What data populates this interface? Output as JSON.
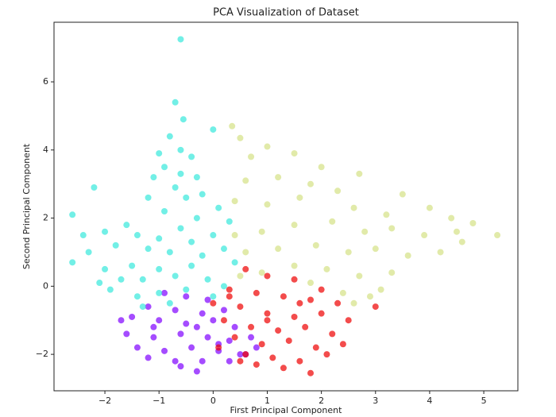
{
  "chart_data": {
    "type": "scatter",
    "title": "PCA Visualization of Dataset",
    "x_label": "First Principal Component",
    "y_label": "Second Principal Component",
    "xlim": [
      -2.94,
      5.63
    ],
    "ylim": [
      -3.07,
      7.75
    ],
    "xticks": [
      {
        "value": -2,
        "label": "−2"
      },
      {
        "value": -1,
        "label": "−1"
      },
      0,
      1,
      2,
      3,
      4,
      5
    ],
    "yticks": [
      {
        "value": -2,
        "label": "−2"
      },
      0,
      2,
      4,
      6
    ],
    "series": [
      {
        "color": "#7f00ff",
        "x": [
          -0.9,
          -0.5,
          -0.1,
          -1.2,
          -0.7,
          -0.2,
          0.2,
          -1.5,
          -1.0,
          -0.5,
          0.0,
          0.4,
          -1.7,
          -1.6,
          -1.1,
          -0.6,
          -0.1,
          0.3,
          0.7,
          -1.4,
          -0.9,
          -0.4,
          0.1,
          0.5,
          -1.2,
          -0.7,
          -0.2,
          0.3,
          -1.1,
          -0.3,
          -0.6,
          -0.3,
          0.6,
          0.8,
          0.1
        ],
        "y": [
          -0.2,
          -0.3,
          -0.4,
          -0.6,
          -0.7,
          -0.8,
          -0.7,
          -0.9,
          -1.0,
          -1.1,
          -1.0,
          -1.2,
          -1.0,
          -1.4,
          -1.5,
          -1.4,
          -1.5,
          -1.6,
          -1.5,
          -1.8,
          -1.9,
          -1.8,
          -1.9,
          -2.0,
          -2.1,
          -2.2,
          -2.2,
          -2.2,
          -1.2,
          -1.2,
          -2.35,
          -2.5,
          -2.0,
          -1.8,
          -1.7
        ]
      },
      {
        "color": "#ee0000",
        "x": [
          0.6,
          1.0,
          1.5,
          2.0,
          0.3,
          0.8,
          1.3,
          1.8,
          2.3,
          3.0,
          0.0,
          0.5,
          1.0,
          1.5,
          2.0,
          2.5,
          0.2,
          0.7,
          1.2,
          1.7,
          2.2,
          2.4,
          1.9,
          1.4,
          0.9,
          0.4,
          0.1,
          0.6,
          1.1,
          1.6,
          2.1,
          0.8,
          1.3,
          1.8,
          0.5,
          1.0,
          1.6,
          0.3
        ],
        "y": [
          0.5,
          0.3,
          0.2,
          -0.1,
          -0.1,
          -0.2,
          -0.3,
          -0.4,
          -0.5,
          -0.6,
          -0.5,
          -0.6,
          -0.8,
          -0.9,
          -0.8,
          -1.0,
          -1.0,
          -1.2,
          -1.3,
          -1.2,
          -1.4,
          -1.7,
          -1.8,
          -1.6,
          -1.7,
          -1.5,
          -1.8,
          -2.0,
          -2.1,
          -2.2,
          -2.0,
          -2.3,
          -2.4,
          -2.55,
          -2.2,
          -1.0,
          -0.5,
          -0.3
        ]
      },
      {
        "color": "#d4e185",
        "x": [
          0.35,
          0.5,
          1.0,
          0.7,
          1.5,
          2.0,
          2.7,
          1.2,
          0.6,
          1.8,
          2.3,
          3.5,
          0.4,
          1.0,
          1.6,
          2.6,
          3.2,
          4.0,
          4.4,
          4.8,
          5.25,
          4.5,
          3.9,
          3.3,
          2.8,
          2.2,
          1.5,
          0.9,
          0.4,
          0.6,
          1.2,
          1.9,
          2.5,
          3.0,
          3.6,
          4.2,
          3.3,
          2.7,
          2.1,
          1.5,
          0.9,
          0.5,
          2.4,
          2.9,
          2.6,
          3.1,
          1.8,
          4.6
        ],
        "y": [
          4.7,
          4.35,
          4.1,
          3.8,
          3.9,
          3.5,
          3.3,
          3.2,
          3.1,
          3.0,
          2.8,
          2.7,
          2.5,
          2.4,
          2.6,
          2.3,
          2.1,
          2.3,
          2.0,
          1.85,
          1.5,
          1.6,
          1.5,
          1.7,
          1.6,
          1.9,
          1.8,
          1.6,
          1.5,
          1.0,
          1.1,
          1.2,
          1.0,
          1.1,
          0.9,
          1.0,
          0.4,
          0.3,
          0.5,
          0.6,
          0.4,
          0.3,
          -0.2,
          -0.3,
          -0.5,
          -0.1,
          0.1,
          1.3
        ]
      },
      {
        "color": "#36e8dc",
        "x": [
          -0.6,
          -0.7,
          -0.55,
          -0.8,
          -0.6,
          -1.0,
          -0.4,
          -0.9,
          -0.6,
          -0.3,
          -1.1,
          -0.7,
          -0.2,
          -0.5,
          -1.2,
          -2.2,
          -2.6,
          -2.4,
          -2.0,
          -1.8,
          -2.3,
          -2.6,
          -2.0,
          -1.6,
          -1.4,
          -1.2,
          -1.0,
          -0.8,
          -0.6,
          -0.4,
          -0.2,
          0.0,
          0.2,
          0.4,
          0.3,
          0.1,
          -1.5,
          -1.3,
          -1.0,
          -0.7,
          -0.4,
          -0.1,
          0.2,
          -1.7,
          -1.9,
          -1.4,
          -1.0,
          -0.5,
          0.0,
          -1.3,
          -0.8,
          -2.1,
          -0.9,
          -0.3,
          0.0
        ],
        "y": [
          7.25,
          5.4,
          4.9,
          4.4,
          4.0,
          3.9,
          3.8,
          3.5,
          3.3,
          3.2,
          3.2,
          2.9,
          2.7,
          2.6,
          2.6,
          2.9,
          2.1,
          1.5,
          1.6,
          1.2,
          1.0,
          0.7,
          0.5,
          1.8,
          1.5,
          1.1,
          1.4,
          1.0,
          1.7,
          1.3,
          0.9,
          1.5,
          1.1,
          0.7,
          1.9,
          2.3,
          0.6,
          0.2,
          0.5,
          0.3,
          0.6,
          0.2,
          0.0,
          0.2,
          -0.1,
          -0.3,
          -0.2,
          -0.1,
          -0.3,
          -0.6,
          -0.5,
          0.1,
          2.2,
          2.0,
          4.6
        ]
      }
    ]
  }
}
